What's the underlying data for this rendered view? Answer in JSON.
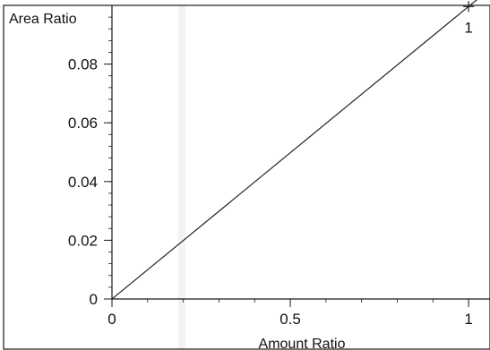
{
  "chart_data": {
    "type": "line",
    "title": "",
    "xlabel": "Amount Ratio",
    "ylabel": "Area Ratio",
    "xlim": [
      0,
      1.06
    ],
    "ylim": [
      0,
      0.1
    ],
    "x_ticks": [
      0,
      0.5,
      1
    ],
    "x_tick_labels": [
      "0",
      "0.5",
      "1"
    ],
    "y_ticks": [
      0,
      0.02,
      0.04,
      0.06,
      0.08
    ],
    "y_tick_labels": [
      "0",
      "0.02",
      "0.04",
      "0.06",
      "0.08"
    ],
    "grid": false,
    "legend": "none",
    "series": [
      {
        "x": [
          0,
          1.06
        ],
        "y": [
          0,
          0.1056
        ],
        "style": "line"
      }
    ],
    "points": [
      {
        "x": 1,
        "y": 0.0996,
        "label": "1",
        "marker": "plus"
      }
    ],
    "colors": {
      "line": "#222222",
      "frame": "#1a1a1a",
      "background": "#ffffff"
    }
  }
}
